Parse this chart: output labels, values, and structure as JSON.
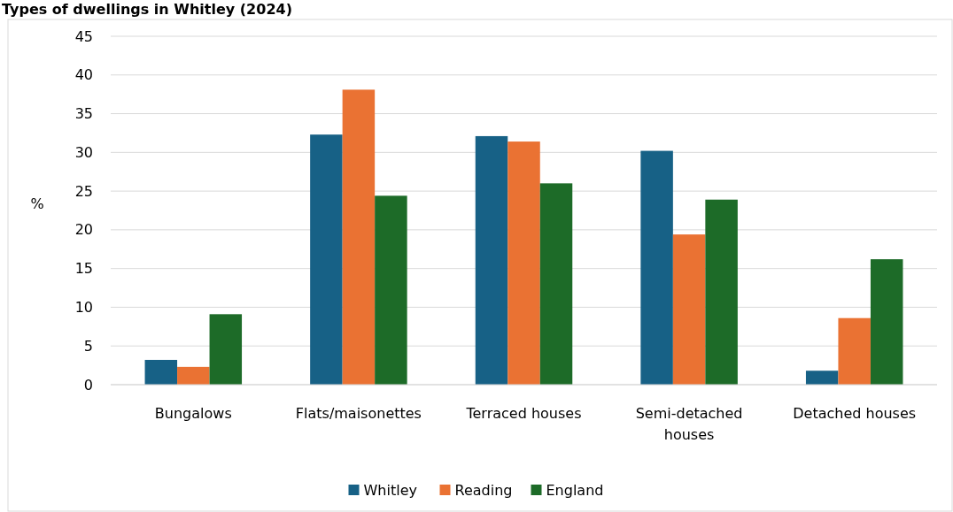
{
  "chart_data": {
    "type": "bar",
    "title": "Types of dwellings in Whitley (2024)",
    "ylabel": "%",
    "categories": [
      "Bungalows",
      "Flats/maisonettes",
      "Terraced houses",
      "Semi-detached houses",
      "Detached houses"
    ],
    "series": [
      {
        "name": "Whitley",
        "color": "#176186",
        "values": [
          3.2,
          32.3,
          32.1,
          30.2,
          1.8
        ]
      },
      {
        "name": "Reading",
        "color": "#ea7233",
        "values": [
          2.3,
          38.1,
          31.4,
          19.4,
          8.6
        ]
      },
      {
        "name": "England",
        "color": "#1d6b28",
        "values": [
          9.1,
          24.4,
          26.0,
          23.9,
          16.2
        ]
      }
    ],
    "ylim": [
      0,
      45
    ],
    "yticks": [
      0,
      5,
      10,
      15,
      20,
      25,
      30,
      35,
      40,
      45
    ],
    "grid": "y",
    "legend": "bottom"
  }
}
